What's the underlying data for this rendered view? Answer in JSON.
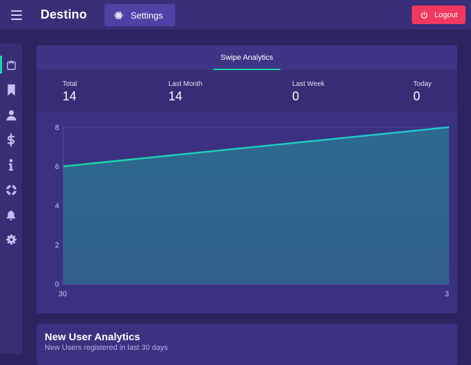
{
  "header": {
    "brand": "Destino",
    "settings_label": "Settings",
    "logout_label": "Logout"
  },
  "sidebar": {
    "items": [
      {
        "icon": "shopping-bag-icon",
        "active": true
      },
      {
        "icon": "bookmark-icon",
        "active": false
      },
      {
        "icon": "user-icon",
        "active": false
      },
      {
        "icon": "dollar-icon",
        "active": false
      },
      {
        "icon": "info-icon",
        "active": false
      },
      {
        "icon": "life-ring-icon",
        "active": false
      },
      {
        "icon": "bell-icon",
        "active": false
      },
      {
        "icon": "gear-icon",
        "active": false
      }
    ]
  },
  "swipe_analytics": {
    "tab_label": "Swipe Analytics",
    "stats": [
      {
        "label": "Total",
        "value": "14"
      },
      {
        "label": "Last Month",
        "value": "14"
      },
      {
        "label": "Last Week",
        "value": "0"
      },
      {
        "label": "Today",
        "value": "0"
      }
    ]
  },
  "chart_data": {
    "type": "area",
    "x": [
      "30",
      "3"
    ],
    "series": [
      {
        "values": [
          6,
          8
        ]
      }
    ],
    "yticks": [
      0,
      2,
      4,
      6,
      8
    ],
    "ylim": [
      0,
      8
    ],
    "grid": true
  },
  "new_user_analytics": {
    "title": "New User Analytics",
    "subtitle": "New Users registered in last 30 days"
  },
  "colors": {
    "accent": "#1ed3a7",
    "logout": "#f2385f",
    "background": "#2c2460",
    "panel": "#3a3180"
  }
}
